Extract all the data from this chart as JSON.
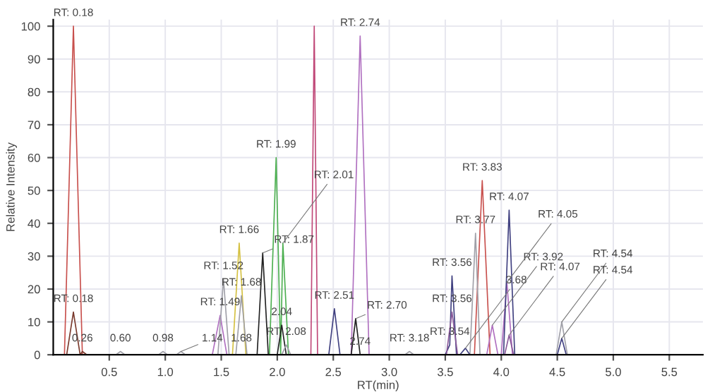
{
  "chart_data": {
    "type": "line",
    "xlabel": "RT(min)",
    "ylabel": "Relative Intensity",
    "xlim": [
      0,
      5.8
    ],
    "ylim": [
      0,
      102
    ],
    "xticks": [
      0.5,
      {
        "value": 1,
        "label": "1.0"
      },
      1.5,
      {
        "value": 2,
        "label": "2.0"
      },
      2.5,
      {
        "value": 3,
        "label": "3.0"
      },
      3.5,
      {
        "value": 4,
        "label": "4.0"
      },
      4.5,
      {
        "value": 5,
        "label": "5.0"
      },
      5.5
    ],
    "yticks": [
      0,
      10,
      20,
      30,
      40,
      50,
      60,
      70,
      80,
      90,
      100
    ],
    "grid": true,
    "legend": false,
    "marker": "none",
    "line_style": "solid",
    "series": [
      {
        "color": "#c8504d",
        "x": [
          0.1,
          0.18,
          0.26,
          3.76,
          3.83,
          3.9
        ],
        "values": [
          0,
          100,
          0,
          0,
          53,
          0
        ]
      },
      {
        "color": "#7a3b2e",
        "x": [
          0.12,
          0.18,
          0.24,
          0.26,
          0.3
        ],
        "values": [
          0,
          13,
          0,
          1,
          0
        ]
      },
      {
        "color": "#c04878",
        "x": [
          2.3,
          2.33,
          2.36
        ],
        "values": [
          0,
          100,
          0
        ]
      },
      {
        "color": "#b070c0",
        "x": [
          1.42,
          1.49,
          1.55,
          2.66,
          2.74,
          2.82,
          3.87,
          3.92,
          3.97,
          4.0,
          4.05,
          4.1
        ],
        "values": [
          0,
          12,
          0,
          0,
          97,
          0,
          0,
          9,
          0,
          0,
          22,
          0
        ]
      },
      {
        "color": "#4caf50",
        "x": [
          1.93,
          1.99,
          2.03,
          2.05,
          2.1
        ],
        "values": [
          0,
          60,
          0,
          34,
          0
        ]
      },
      {
        "color": "#222222",
        "x": [
          1.82,
          1.87,
          1.92,
          2.0,
          2.04,
          2.08,
          2.66,
          2.7,
          2.74
        ],
        "values": [
          0,
          31,
          0,
          0,
          9,
          0,
          0,
          11,
          0
        ]
      },
      {
        "color": "#d4c040",
        "x": [
          1.6,
          1.66,
          1.72
        ],
        "values": [
          0,
          34,
          0
        ]
      },
      {
        "color": "#a0a0a8",
        "x": [
          0.56,
          0.6,
          0.64,
          0.94,
          0.98,
          1.02,
          1.1,
          1.14,
          1.18,
          1.47,
          1.52,
          1.57,
          1.63,
          1.68,
          1.73,
          2.04,
          2.08,
          2.12,
          3.14,
          3.18,
          3.22,
          3.72,
          3.77,
          3.81,
          4.49,
          4.54,
          4.59
        ],
        "values": [
          0,
          1,
          0,
          0,
          1,
          0,
          0,
          1,
          0,
          0,
          23,
          0,
          0,
          18,
          0,
          0,
          3,
          0,
          0,
          1,
          0,
          0,
          37,
          0,
          0,
          10,
          0
        ]
      },
      {
        "color": "#404080",
        "x": [
          2.46,
          2.51,
          2.56,
          3.5,
          3.54,
          3.56,
          3.6,
          3.63,
          3.68,
          3.72,
          4.02,
          4.07,
          4.12,
          4.5,
          4.54,
          4.58
        ],
        "values": [
          0,
          14,
          0,
          0,
          3,
          24,
          0,
          0,
          2,
          0,
          0,
          44,
          0,
          0,
          5,
          0
        ]
      },
      {
        "color": "#8a5a9a",
        "x": [
          3.51,
          3.56,
          3.61,
          4.03,
          4.07,
          4.11
        ],
        "values": [
          0,
          13,
          0,
          0,
          6,
          0
        ]
      }
    ],
    "annotations": [
      {
        "text": "RT: 0.18",
        "x": 0.18,
        "y": 100
      },
      {
        "text": "RT: 0.18",
        "x": 0.18,
        "y": 13
      },
      {
        "text": "0.26",
        "x": 0.26,
        "y": 1
      },
      {
        "text": "0.60",
        "x": 0.6,
        "y": 1
      },
      {
        "text": "0.98",
        "x": 0.98,
        "y": 1
      },
      {
        "text": "1.14",
        "x": 1.14,
        "y": 1
      },
      {
        "text": "RT: 1.49",
        "x": 1.49,
        "y": 12
      },
      {
        "text": "RT: 1.52",
        "x": 1.52,
        "y": 23
      },
      {
        "text": "RT: 1.66",
        "x": 1.66,
        "y": 34
      },
      {
        "text": "RT: 1.68",
        "x": 1.68,
        "y": 18
      },
      {
        "text": "1.68",
        "x": 1.68,
        "y": 1
      },
      {
        "text": "RT: 1.87",
        "x": 1.87,
        "y": 31
      },
      {
        "text": "RT: 1.99",
        "x": 1.99,
        "y": 60
      },
      {
        "text": "RT: 2.01",
        "x": 2.05,
        "y": 34
      },
      {
        "text": "2.04",
        "x": 2.04,
        "y": 9
      },
      {
        "text": "RT: 2.08",
        "x": 2.08,
        "y": 3
      },
      {
        "text": "RT: 2.51",
        "x": 2.51,
        "y": 14
      },
      {
        "text": "RT: 2.70",
        "x": 2.7,
        "y": 11
      },
      {
        "text": "2.74",
        "x": 2.74,
        "y": 0
      },
      {
        "text": "RT: 2.74",
        "x": 2.74,
        "y": 97
      },
      {
        "text": "RT: 3.18",
        "x": 3.18,
        "y": 1
      },
      {
        "text": "RT: 3.54",
        "x": 3.54,
        "y": 3
      },
      {
        "text": "RT: 3.56",
        "x": 3.56,
        "y": 24
      },
      {
        "text": "RT: 3.56",
        "x": 3.56,
        "y": 13
      },
      {
        "text": "3.68",
        "x": 3.68,
        "y": 2
      },
      {
        "text": "RT: 3.77",
        "x": 3.77,
        "y": 37
      },
      {
        "text": "RT: 3.83",
        "x": 3.83,
        "y": 53
      },
      {
        "text": "RT: 3.92",
        "x": 3.92,
        "y": 9
      },
      {
        "text": "RT: 4.05",
        "x": 4.05,
        "y": 22
      },
      {
        "text": "RT: 4.07",
        "x": 4.07,
        "y": 44
      },
      {
        "text": "RT: 4.07",
        "x": 4.07,
        "y": 6
      },
      {
        "text": "RT: 4.54",
        "x": 4.54,
        "y": 10
      },
      {
        "text": "RT: 4.54",
        "x": 4.54,
        "y": 5
      }
    ]
  }
}
